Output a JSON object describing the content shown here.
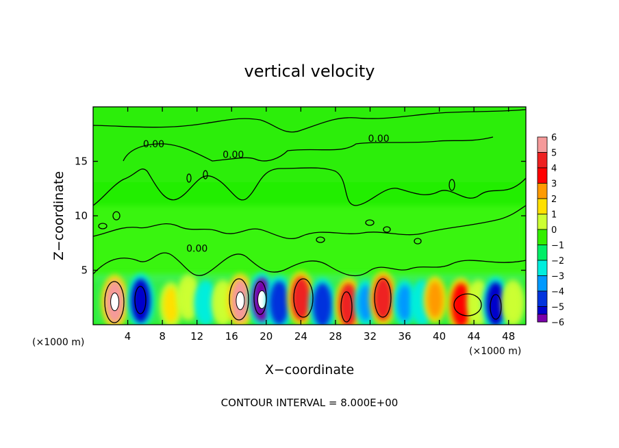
{
  "chart_data": {
    "type": "heatmap",
    "title": "vertical velocity",
    "xlabel": "X−coordinate",
    "ylabel": "Z−coordinate",
    "x_unit_left": "(×1000 m)",
    "x_unit_right": "(×1000 m)",
    "xlim": [
      0,
      50
    ],
    "ylim": [
      0,
      20
    ],
    "xticks": [
      4,
      8,
      12,
      16,
      20,
      24,
      28,
      32,
      36,
      40,
      44,
      48
    ],
    "xtick_labels": [
      "4",
      "8",
      "12",
      "16",
      "20",
      "24",
      "28",
      "32",
      "36",
      "40",
      "44",
      "48"
    ],
    "yticks": [
      5,
      10,
      15
    ],
    "ytick_labels": [
      "5",
      "10",
      "15"
    ],
    "colorbar": {
      "min": -6,
      "max": 6,
      "ticks": [
        6,
        5,
        4,
        3,
        2,
        1,
        0,
        -1,
        -2,
        -3,
        -4,
        -5,
        -6
      ],
      "tick_labels": [
        "6",
        "5",
        "4",
        "3",
        "2",
        "1",
        "0",
        "−1",
        "−2",
        "−3",
        "−4",
        "−5",
        "−6"
      ],
      "colors": [
        "#f59a9a",
        "#ee2020",
        "#ff0000",
        "#ff9a00",
        "#ffe000",
        "#ccff33",
        "#33ee00",
        "#00ee66",
        "#00eedd",
        "#0099ff",
        "#0033dd",
        "#0000cc",
        "#7a00aa"
      ]
    },
    "contour_labels": [
      {
        "text": "0.00",
        "x": 7.0,
        "y": 16.3
      },
      {
        "text": "0.00",
        "x": 16.2,
        "y": 15.3
      },
      {
        "text": "0.00",
        "x": 33.0,
        "y": 16.8
      },
      {
        "text": "0.00",
        "x": 12.0,
        "y": 6.7
      }
    ],
    "cells": [
      {
        "x": 2.5,
        "y": 2.1,
        "value": 6
      },
      {
        "x": 5.5,
        "y": 2.2,
        "value": -5
      },
      {
        "x": 9.0,
        "y": 1.8,
        "value": 2
      },
      {
        "x": 11.0,
        "y": 2.5,
        "value": 1
      },
      {
        "x": 13.0,
        "y": 2.0,
        "value": -2
      },
      {
        "x": 15.0,
        "y": 2.0,
        "value": 1
      },
      {
        "x": 17.0,
        "y": 2.2,
        "value": 6
      },
      {
        "x": 19.5,
        "y": 2.3,
        "value": -6
      },
      {
        "x": 21.5,
        "y": 2.0,
        "value": -4
      },
      {
        "x": 24.0,
        "y": 2.4,
        "value": 5
      },
      {
        "x": 26.5,
        "y": 1.8,
        "value": -4
      },
      {
        "x": 29.5,
        "y": 1.8,
        "value": 5
      },
      {
        "x": 31.5,
        "y": 2.0,
        "value": -3
      },
      {
        "x": 33.5,
        "y": 2.4,
        "value": 5
      },
      {
        "x": 36.0,
        "y": 2.0,
        "value": -3
      },
      {
        "x": 38.0,
        "y": 2.0,
        "value": -2
      },
      {
        "x": 39.5,
        "y": 2.3,
        "value": 3
      },
      {
        "x": 42.5,
        "y": 1.8,
        "value": 4
      },
      {
        "x": 44.5,
        "y": 2.0,
        "value": 1
      },
      {
        "x": 46.5,
        "y": 1.9,
        "value": -5
      },
      {
        "x": 48.5,
        "y": 2.0,
        "value": 1
      }
    ]
  },
  "footer": "CONTOUR INTERVAL = 8.000E+00"
}
